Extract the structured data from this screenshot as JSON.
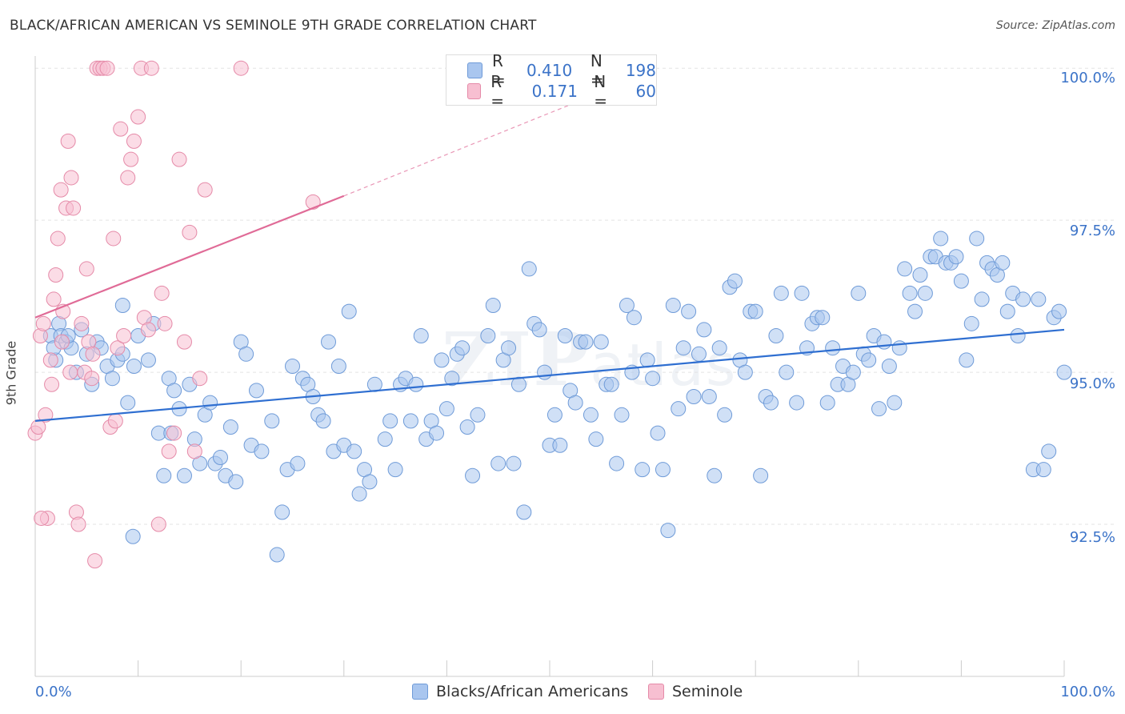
{
  "title": "BLACK/AFRICAN AMERICAN VS SEMINOLE 9TH GRADE CORRELATION CHART",
  "source": "Source: ZipAtlas.com",
  "watermark": {
    "main": "ZIP",
    "sub": "atlas"
  },
  "legend": {
    "rows": [
      {
        "r_label": "R =",
        "r_value": "0.410",
        "n_label": "N =",
        "n_value": "198",
        "color": "#a9c6ef",
        "border": "#6f9bd8"
      },
      {
        "r_label": "R =",
        "r_value": "0.171",
        "n_label": "N =",
        "n_value": "60",
        "color": "#f7bfd1",
        "border": "#e58aa8"
      }
    ]
  },
  "chart_data": {
    "type": "scatter",
    "title": "BLACK/AFRICAN AMERICAN VS SEMINOLE 9TH GRADE CORRELATION CHART",
    "xlabel": "",
    "ylabel": "9th Grade",
    "xlim": [
      0,
      100
    ],
    "ylim": [
      90.0,
      100.2
    ],
    "y_ticks": [
      92.5,
      95.0,
      97.5,
      100.0
    ],
    "y_tick_labels": [
      "92.5%",
      "95.0%",
      "97.5%",
      "100.0%"
    ],
    "x_tick_labels": [
      "0.0%",
      "100.0%"
    ],
    "legend_placement": "top-center",
    "series": [
      {
        "name": "Blacks/African Americans",
        "color": "#a9c6ef",
        "stroke": "#6f9bd8",
        "trend": {
          "x0": 0,
          "y0": 94.2,
          "x1": 100,
          "y1": 95.7,
          "color": "#2f6fd1"
        },
        "points": [
          [
            1.5,
            95.6
          ],
          [
            2,
            95.2
          ],
          [
            2.3,
            95.8
          ],
          [
            2.5,
            95.6
          ],
          [
            3,
            95.5
          ],
          [
            3.5,
            95.4
          ],
          [
            4,
            95.0
          ],
          [
            4.5,
            95.7
          ],
          [
            5,
            95.3
          ],
          [
            5.5,
            94.8
          ],
          [
            6,
            95.5
          ],
          [
            7,
            95.1
          ],
          [
            7.5,
            94.9
          ],
          [
            8,
            95.2
          ],
          [
            8.5,
            95.3
          ],
          [
            9,
            94.5
          ],
          [
            9.5,
            92.3
          ],
          [
            10,
            95.6
          ],
          [
            11,
            95.2
          ],
          [
            11.5,
            95.8
          ],
          [
            12,
            94.0
          ],
          [
            12.5,
            93.3
          ],
          [
            13,
            94.9
          ],
          [
            13.5,
            94.7
          ],
          [
            14,
            94.4
          ],
          [
            14.5,
            93.3
          ],
          [
            15,
            94.8
          ],
          [
            15.5,
            93.9
          ],
          [
            16,
            93.5
          ],
          [
            16.5,
            94.3
          ],
          [
            17,
            94.5
          ],
          [
            17.5,
            93.5
          ],
          [
            18,
            93.6
          ],
          [
            18.5,
            93.3
          ],
          [
            19,
            94.1
          ],
          [
            19.5,
            93.2
          ],
          [
            20,
            95.5
          ],
          [
            20.5,
            95.3
          ],
          [
            21,
            93.8
          ],
          [
            21.5,
            94.7
          ],
          [
            22,
            93.7
          ],
          [
            23,
            94.2
          ],
          [
            23.5,
            92.0
          ],
          [
            24,
            92.7
          ],
          [
            24.5,
            93.4
          ],
          [
            25,
            95.1
          ],
          [
            25.5,
            93.5
          ],
          [
            26,
            94.9
          ],
          [
            26.5,
            94.8
          ],
          [
            27,
            94.6
          ],
          [
            27.5,
            94.3
          ],
          [
            28,
            94.2
          ],
          [
            28.5,
            95.5
          ],
          [
            29,
            93.7
          ],
          [
            29.5,
            95.1
          ],
          [
            30,
            93.8
          ],
          [
            30.5,
            96.0
          ],
          [
            31,
            93.7
          ],
          [
            31.5,
            93.0
          ],
          [
            32,
            93.4
          ],
          [
            32.5,
            93.2
          ],
          [
            33,
            94.8
          ],
          [
            34,
            93.9
          ],
          [
            34.5,
            94.2
          ],
          [
            35,
            93.4
          ],
          [
            35.5,
            94.8
          ],
          [
            36,
            94.9
          ],
          [
            36.5,
            94.2
          ],
          [
            37,
            94.8
          ],
          [
            37.5,
            95.6
          ],
          [
            38,
            93.9
          ],
          [
            38.5,
            94.2
          ],
          [
            39,
            94.0
          ],
          [
            39.5,
            95.2
          ],
          [
            40,
            94.4
          ],
          [
            40.5,
            94.9
          ],
          [
            41,
            95.3
          ],
          [
            41.5,
            95.4
          ],
          [
            42,
            94.1
          ],
          [
            42.5,
            93.3
          ],
          [
            43,
            94.3
          ],
          [
            44,
            95.6
          ],
          [
            44.5,
            96.1
          ],
          [
            45,
            93.5
          ],
          [
            45.5,
            95.2
          ],
          [
            46,
            95.4
          ],
          [
            46.5,
            93.5
          ],
          [
            47,
            94.8
          ],
          [
            47.5,
            92.7
          ],
          [
            48,
            96.7
          ],
          [
            48.5,
            95.8
          ],
          [
            49,
            95.7
          ],
          [
            49.5,
            95.0
          ],
          [
            50,
            93.8
          ],
          [
            50.5,
            94.3
          ],
          [
            51,
            93.8
          ],
          [
            51.5,
            95.6
          ],
          [
            52,
            94.7
          ],
          [
            52.5,
            94.5
          ],
          [
            53,
            95.5
          ],
          [
            53.5,
            95.5
          ],
          [
            54,
            94.3
          ],
          [
            54.5,
            93.9
          ],
          [
            55,
            95.5
          ],
          [
            55.5,
            94.8
          ],
          [
            56,
            94.8
          ],
          [
            56.5,
            93.5
          ],
          [
            57,
            94.3
          ],
          [
            57.5,
            96.1
          ],
          [
            58,
            95.0
          ],
          [
            59,
            93.4
          ],
          [
            59.5,
            95.2
          ],
          [
            60,
            94.9
          ],
          [
            60.5,
            94.0
          ],
          [
            61,
            93.4
          ],
          [
            61.5,
            92.4
          ],
          [
            62,
            96.1
          ],
          [
            62.5,
            94.4
          ],
          [
            63,
            95.4
          ],
          [
            63.5,
            96.0
          ],
          [
            64,
            94.6
          ],
          [
            64.5,
            95.3
          ],
          [
            65,
            95.7
          ],
          [
            65.5,
            94.6
          ],
          [
            66,
            93.3
          ],
          [
            66.5,
            95.4
          ],
          [
            67,
            94.3
          ],
          [
            67.5,
            96.4
          ],
          [
            68,
            96.5
          ],
          [
            68.5,
            95.2
          ],
          [
            69,
            95.0
          ],
          [
            69.5,
            96.0
          ],
          [
            70,
            96.0
          ],
          [
            70.5,
            93.3
          ],
          [
            71,
            94.6
          ],
          [
            71.5,
            94.5
          ],
          [
            72,
            95.6
          ],
          [
            72.5,
            96.3
          ],
          [
            73,
            95.0
          ],
          [
            74,
            94.5
          ],
          [
            74.5,
            96.3
          ],
          [
            75,
            95.4
          ],
          [
            75.5,
            95.8
          ],
          [
            76,
            95.9
          ],
          [
            76.5,
            95.9
          ],
          [
            77,
            94.5
          ],
          [
            77.5,
            95.4
          ],
          [
            78,
            94.8
          ],
          [
            78.5,
            95.1
          ],
          [
            79,
            94.8
          ],
          [
            79.5,
            95.0
          ],
          [
            80,
            96.3
          ],
          [
            80.5,
            95.3
          ],
          [
            81,
            95.2
          ],
          [
            81.5,
            95.6
          ],
          [
            82,
            94.4
          ],
          [
            82.5,
            95.5
          ],
          [
            83,
            95.1
          ],
          [
            83.5,
            94.5
          ],
          [
            84,
            95.4
          ],
          [
            84.5,
            96.7
          ],
          [
            85,
            96.3
          ],
          [
            85.5,
            96.0
          ],
          [
            86,
            96.6
          ],
          [
            86.5,
            96.3
          ],
          [
            87,
            96.9
          ],
          [
            87.5,
            96.9
          ],
          [
            88,
            97.2
          ],
          [
            88.5,
            96.8
          ],
          [
            89,
            96.8
          ],
          [
            89.5,
            96.9
          ],
          [
            90,
            96.5
          ],
          [
            90.5,
            95.2
          ],
          [
            91,
            95.8
          ],
          [
            91.5,
            97.2
          ],
          [
            92,
            96.2
          ],
          [
            92.5,
            96.8
          ],
          [
            93,
            96.7
          ],
          [
            93.5,
            96.6
          ],
          [
            94,
            96.8
          ],
          [
            94.5,
            96.0
          ],
          [
            95,
            96.3
          ],
          [
            95.5,
            95.6
          ],
          [
            96,
            96.2
          ],
          [
            97,
            93.4
          ],
          [
            97.5,
            96.2
          ],
          [
            98,
            93.4
          ],
          [
            98.5,
            93.7
          ],
          [
            99,
            95.9
          ],
          [
            99.5,
            96.0
          ],
          [
            100,
            95.0
          ],
          [
            8.5,
            96.1
          ],
          [
            1.8,
            95.4
          ],
          [
            3.2,
            95.6
          ],
          [
            9.6,
            95.1
          ],
          [
            6.4,
            95.4
          ],
          [
            13.2,
            94.0
          ],
          [
            58.2,
            95.9
          ]
        ]
      },
      {
        "name": "Seminole",
        "color": "#f7bfd1",
        "stroke": "#e58aa8",
        "trend": {
          "x0": 0,
          "y0": 95.9,
          "x1": 30,
          "y1": 97.9,
          "dash_to_x": 52,
          "dash_to_y": 99.4,
          "color": "#e06b97"
        },
        "points": [
          [
            0,
            94.0
          ],
          [
            0.5,
            95.6
          ],
          [
            0.8,
            95.8
          ],
          [
            1,
            94.3
          ],
          [
            1.2,
            92.6
          ],
          [
            1.5,
            95.2
          ],
          [
            1.8,
            96.2
          ],
          [
            2,
            96.6
          ],
          [
            2.2,
            97.2
          ],
          [
            2.5,
            98.0
          ],
          [
            2.7,
            96.0
          ],
          [
            3,
            97.7
          ],
          [
            3.2,
            98.8
          ],
          [
            3.5,
            98.2
          ],
          [
            3.7,
            97.7
          ],
          [
            4,
            92.7
          ],
          [
            4.2,
            92.5
          ],
          [
            4.5,
            95.8
          ],
          [
            4.8,
            95.0
          ],
          [
            5,
            96.7
          ],
          [
            5.2,
            95.5
          ],
          [
            5.5,
            94.9
          ],
          [
            5.8,
            91.9
          ],
          [
            6,
            100.0
          ],
          [
            6.3,
            100.0
          ],
          [
            6.6,
            100.0
          ],
          [
            7,
            100.0
          ],
          [
            7.3,
            94.1
          ],
          [
            7.6,
            97.2
          ],
          [
            8,
            95.4
          ],
          [
            8.3,
            99.0
          ],
          [
            8.6,
            95.6
          ],
          [
            9,
            98.2
          ],
          [
            9.3,
            98.5
          ],
          [
            9.6,
            98.8
          ],
          [
            10,
            99.2
          ],
          [
            10.3,
            100.0
          ],
          [
            10.6,
            95.9
          ],
          [
            11,
            95.7
          ],
          [
            11.3,
            100.0
          ],
          [
            12,
            92.5
          ],
          [
            12.3,
            96.3
          ],
          [
            12.6,
            95.8
          ],
          [
            13,
            93.7
          ],
          [
            13.5,
            94.0
          ],
          [
            14,
            98.5
          ],
          [
            14.5,
            95.5
          ],
          [
            15,
            97.3
          ],
          [
            15.5,
            93.7
          ],
          [
            16,
            94.9
          ],
          [
            16.5,
            98.0
          ],
          [
            20,
            100.0
          ],
          [
            27,
            97.8
          ],
          [
            0.3,
            94.1
          ],
          [
            0.6,
            92.6
          ],
          [
            1.6,
            94.8
          ],
          [
            2.6,
            95.5
          ],
          [
            3.4,
            95.0
          ],
          [
            5.6,
            95.3
          ],
          [
            7.8,
            94.2
          ]
        ]
      }
    ]
  },
  "bottom_legend": [
    {
      "label": "Blacks/African Americans",
      "color": "#a9c6ef",
      "border": "#6f9bd8"
    },
    {
      "label": "Seminole",
      "color": "#f7bfd1",
      "border": "#e58aa8"
    }
  ]
}
